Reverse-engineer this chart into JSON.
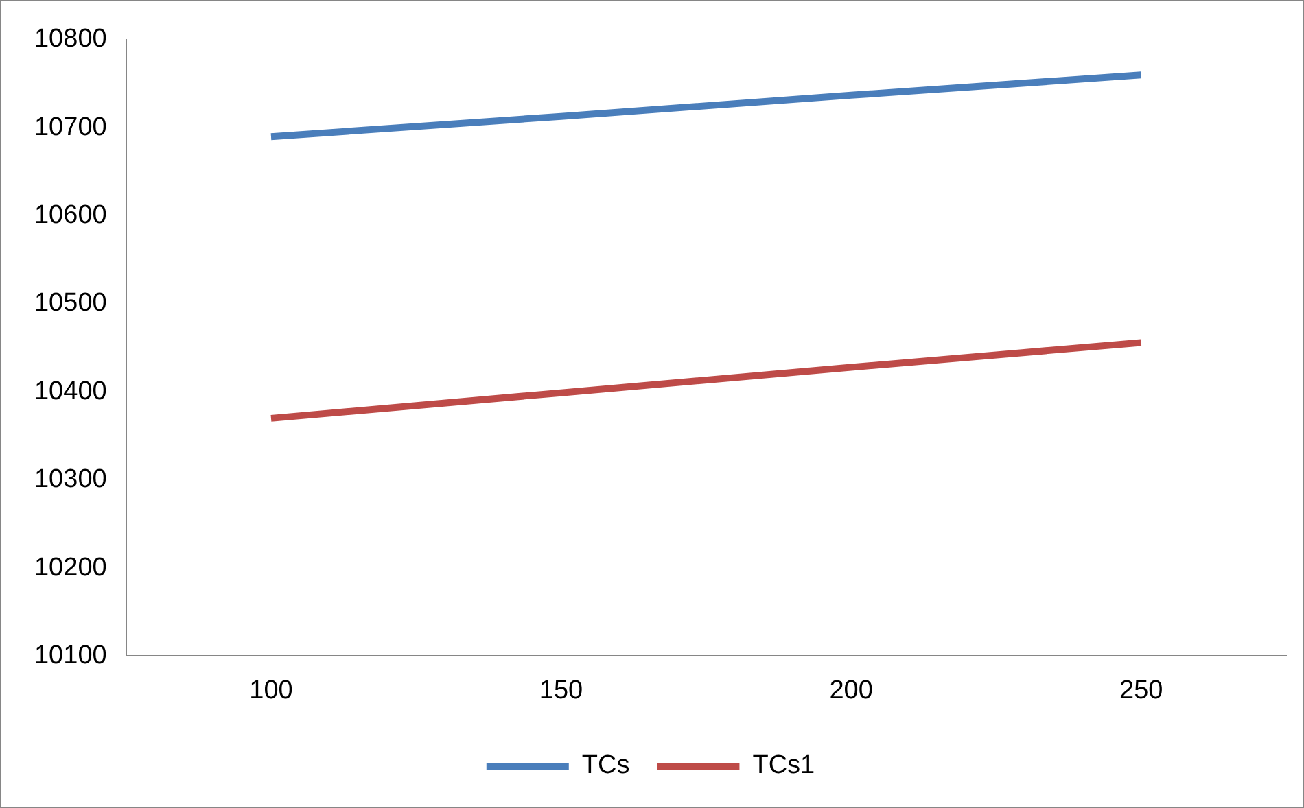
{
  "chart_data": {
    "type": "line",
    "categories": [
      "100",
      "150",
      "200",
      "250"
    ],
    "series": [
      {
        "name": "TCs",
        "color": "#4a7ebb",
        "values": [
          10690,
          10713,
          10737,
          10760
        ]
      },
      {
        "name": "TCs1",
        "color": "#be4b48",
        "values": [
          10370,
          10399,
          10428,
          10456
        ]
      }
    ],
    "ylim": [
      10100,
      10800
    ],
    "yticks": [
      10100,
      10200,
      10300,
      10400,
      10500,
      10600,
      10700,
      10800
    ],
    "grid": false,
    "legend": "bottom",
    "marker": "none",
    "line_style": "solid"
  }
}
